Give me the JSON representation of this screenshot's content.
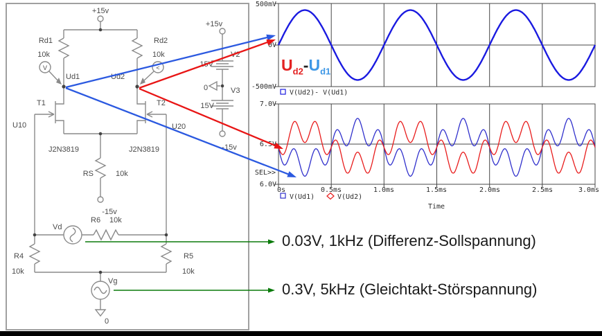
{
  "colors": {
    "wave_blue": "#1a1ae0",
    "wave_red": "#e81c1c",
    "arrow_blue": "#2b59e0",
    "arrow_red": "#e81515",
    "arrow_green": "#0a7a0a",
    "grid": "#474747",
    "schematic_stroke": "#8a8a8a",
    "plot_text": "#2b2b2b"
  },
  "schematic": {
    "labels": {
      "vcc_top": "+15v",
      "rd1": "Rd1",
      "rd1_value": "10k",
      "rd2": "Rd2",
      "rd2_value": "10k",
      "ud1": "Ud1",
      "ud2": "Ud2",
      "t1": "T1",
      "t2": "T2",
      "u10": "U10",
      "u20": "U20",
      "t1_model": "J2N3819",
      "t2_model": "J2N3819",
      "rs": "RS",
      "rs_value": "10k",
      "vee_mid": "-15v",
      "r6": "R6",
      "r6_value": "10k",
      "vd": "Vd",
      "r4": "R4",
      "r4_value": "10k",
      "r5": "R5",
      "r5_value": "10k",
      "vg": "Vg",
      "gnd_bottom": "0",
      "probe1": "V",
      "probe2": "<",
      "vstack_plus": "+15v",
      "v2": "V2",
      "v2_value": "15V",
      "v3_zero": "0",
      "v3": "V3",
      "v3_value": "15V",
      "vstack_minus": "-15v"
    }
  },
  "formula": {
    "u2": "U",
    "u2_sub": "d2",
    "minus": "-",
    "u1": "U",
    "u1_sub": "d1"
  },
  "annotations": {
    "diff": "0.03V, 1kHz (Differenz-Sollspannung)",
    "common": "0.3V, 5kHz (Gleichtakt-Störspannung)"
  },
  "chart_data": [
    {
      "type": "line",
      "title": "",
      "xlabel": "",
      "xlim_ms": [
        0,
        3
      ],
      "ylim_v": [
        -0.5,
        0.5
      ],
      "y_ticks": [
        "500mV",
        "0V",
        "-500mV"
      ],
      "grid": true,
      "legend_position": "bottom-left",
      "series": [
        {
          "name": "V(Ud2)- V(Ud1)",
          "marker": "square",
          "color": "#1a1ae0",
          "model": {
            "dc": 0,
            "components": [
              {
                "freq_hz": 1000,
                "amplitude_v": 0.42,
                "phase_deg": 0
              }
            ]
          },
          "description": "1 kHz sine, ~0.42 V amplitude, 3 cycles over 0-3 ms"
        }
      ]
    },
    {
      "type": "line",
      "xlabel": "Time",
      "xlim_ms": [
        0,
        3
      ],
      "ylim_v": [
        6.0,
        7.0
      ],
      "x_ticks": [
        "0s",
        "0.5ms",
        "1.0ms",
        "1.5ms",
        "2.0ms",
        "2.5ms",
        "3.0ms"
      ],
      "y_ticks": [
        "7.0V",
        "6.5V",
        "6.0V"
      ],
      "sel_label": "SEL>>",
      "grid": true,
      "legend_position": "bottom-left",
      "series": [
        {
          "name": "V(Ud1)",
          "marker": "square",
          "color": "#3030cc",
          "model": {
            "dc": 6.46,
            "components": [
              {
                "freq_hz": 1000,
                "amplitude_v": -0.21,
                "phase_deg": 0
              },
              {
                "freq_hz": 5000,
                "amplitude_v": -0.15,
                "phase_deg": 0
              }
            ]
          }
        },
        {
          "name": "V(Ud2)",
          "marker": "diamond",
          "color": "#e81c1c",
          "model": {
            "dc": 6.46,
            "components": [
              {
                "freq_hz": 1000,
                "amplitude_v": 0.21,
                "phase_deg": 0
              },
              {
                "freq_hz": 5000,
                "amplitude_v": -0.15,
                "phase_deg": 0
              }
            ]
          }
        }
      ]
    }
  ]
}
